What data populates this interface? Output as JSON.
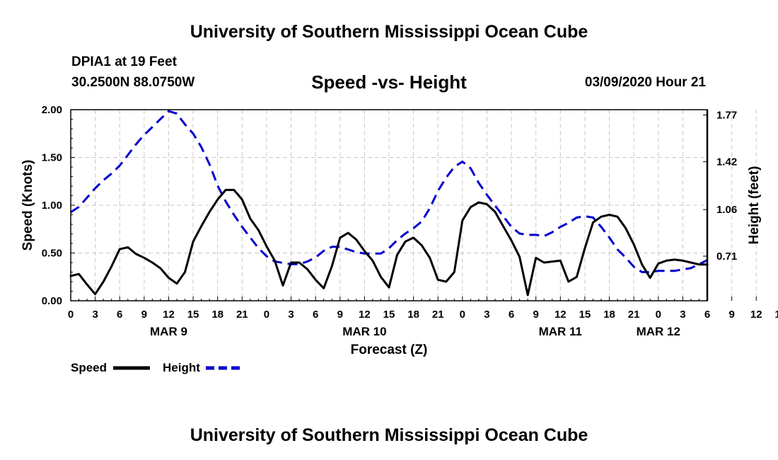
{
  "header": {
    "title": "University of Southern Mississippi Ocean Cube",
    "station": "DPIA1 at 19 Feet",
    "coords": "30.2500N 88.0750W",
    "chart_title": "Speed -vs- Height",
    "datetime": "03/09/2020 Hour 21"
  },
  "footer": {
    "title": "University of Southern Mississippi Ocean Cube"
  },
  "legend": {
    "speed_label": "Speed",
    "height_label": "Height"
  },
  "colors": {
    "speed": "#000000",
    "height": "#0000cc",
    "grid": "#c8c8c8"
  },
  "chart_data": {
    "type": "line",
    "title": "Speed -vs- Height",
    "xlabel": "Forecast (Z)",
    "ylabel": "Speed (Knots)",
    "y2label": "Height (feet)",
    "x_range_hours": [
      0,
      78
    ],
    "ylim": [
      0,
      2.0
    ],
    "y2lim": [
      0.375,
      1.81
    ],
    "y_ticks": [
      "0.00",
      "0.50",
      "1.00",
      "1.50",
      "2.00"
    ],
    "y2_ticks": [
      "0.71",
      "1.06",
      "1.42",
      "1.77"
    ],
    "x_tick_labels": [
      "0",
      "3",
      "6",
      "9",
      "12",
      "15",
      "18",
      "21",
      "0",
      "3",
      "6",
      "9",
      "12",
      "15",
      "18",
      "21",
      "0",
      "3",
      "6",
      "9",
      "12",
      "15",
      "18",
      "21",
      "0",
      "3",
      "6",
      "9",
      "12",
      "15",
      "18",
      "21",
      "0",
      "3",
      "6"
    ],
    "date_labels": [
      {
        "label": "MAR 9",
        "hour": 12
      },
      {
        "label": "MAR 10",
        "hour": 36
      },
      {
        "label": "MAR 11",
        "hour": 60
      },
      {
        "label": "MAR 12",
        "hour": 72
      }
    ],
    "series": [
      {
        "name": "Speed",
        "axis": "left",
        "style": "solid",
        "x": [
          0,
          1,
          2,
          3,
          4,
          5,
          6,
          7,
          8,
          9,
          10,
          11,
          12,
          13,
          14,
          15,
          16,
          17,
          18,
          19,
          20,
          21,
          22,
          23,
          24,
          25,
          26,
          27,
          28,
          29,
          30,
          31,
          32,
          33,
          34,
          35,
          36,
          37,
          38,
          39,
          40,
          41,
          42,
          43,
          44,
          45,
          46,
          47,
          48,
          49,
          50,
          51,
          52,
          53,
          54,
          55,
          56,
          57,
          58,
          59,
          60,
          61,
          62,
          63,
          64,
          65,
          66,
          67,
          68,
          69,
          70,
          71,
          72,
          73,
          74,
          75,
          76,
          77,
          78
        ],
        "values": [
          0.26,
          0.28,
          0.17,
          0.07,
          0.2,
          0.36,
          0.54,
          0.56,
          0.49,
          0.45,
          0.4,
          0.34,
          0.24,
          0.18,
          0.3,
          0.62,
          0.78,
          0.93,
          1.06,
          1.16,
          1.16,
          1.06,
          0.86,
          0.74,
          0.57,
          0.42,
          0.16,
          0.4,
          0.4,
          0.33,
          0.22,
          0.13,
          0.36,
          0.66,
          0.71,
          0.64,
          0.52,
          0.42,
          0.25,
          0.14,
          0.48,
          0.62,
          0.66,
          0.58,
          0.45,
          0.22,
          0.2,
          0.3,
          0.84,
          0.98,
          1.03,
          1.01,
          0.93,
          0.78,
          0.63,
          0.46,
          0.06,
          0.45,
          0.4,
          0.41,
          0.42,
          0.2,
          0.25,
          0.55,
          0.82,
          0.88,
          0.9,
          0.88,
          0.76,
          0.59,
          0.38,
          0.24,
          0.39,
          0.42,
          0.43,
          0.42,
          0.4,
          0.38,
          0.38
        ]
      },
      {
        "name": "Height",
        "axis": "right",
        "style": "dashed",
        "x": [
          0,
          1,
          2,
          3,
          4,
          5,
          6,
          7,
          8,
          9,
          10,
          11,
          12,
          13,
          14,
          15,
          16,
          17,
          18,
          19,
          20,
          21,
          22,
          23,
          24,
          25,
          26,
          27,
          28,
          29,
          30,
          31,
          32,
          33,
          34,
          35,
          36,
          37,
          38,
          39,
          40,
          41,
          42,
          43,
          44,
          45,
          46,
          47,
          48,
          49,
          50,
          51,
          52,
          53,
          54,
          55,
          56,
          57,
          58,
          59,
          60,
          61,
          62,
          63,
          64,
          65,
          66,
          67,
          68,
          69,
          70,
          71,
          72,
          73,
          74,
          75,
          76,
          77,
          78
        ],
        "values": [
          1.04,
          1.08,
          1.15,
          1.22,
          1.28,
          1.33,
          1.39,
          1.47,
          1.55,
          1.62,
          1.68,
          1.74,
          1.8,
          1.78,
          1.7,
          1.63,
          1.53,
          1.4,
          1.24,
          1.12,
          1.02,
          0.93,
          0.85,
          0.77,
          0.71,
          0.67,
          0.66,
          0.65,
          0.65,
          0.67,
          0.7,
          0.75,
          0.78,
          0.78,
          0.76,
          0.74,
          0.73,
          0.73,
          0.73,
          0.77,
          0.83,
          0.88,
          0.92,
          0.97,
          1.07,
          1.2,
          1.3,
          1.38,
          1.42,
          1.37,
          1.26,
          1.17,
          1.09,
          1.01,
          0.93,
          0.88,
          0.87,
          0.87,
          0.86,
          0.89,
          0.93,
          0.96,
          1.0,
          1.01,
          1.0,
          0.93,
          0.85,
          0.76,
          0.7,
          0.63,
          0.59,
          0.59,
          0.6,
          0.6,
          0.6,
          0.61,
          0.62,
          0.65,
          0.68
        ]
      }
    ]
  }
}
